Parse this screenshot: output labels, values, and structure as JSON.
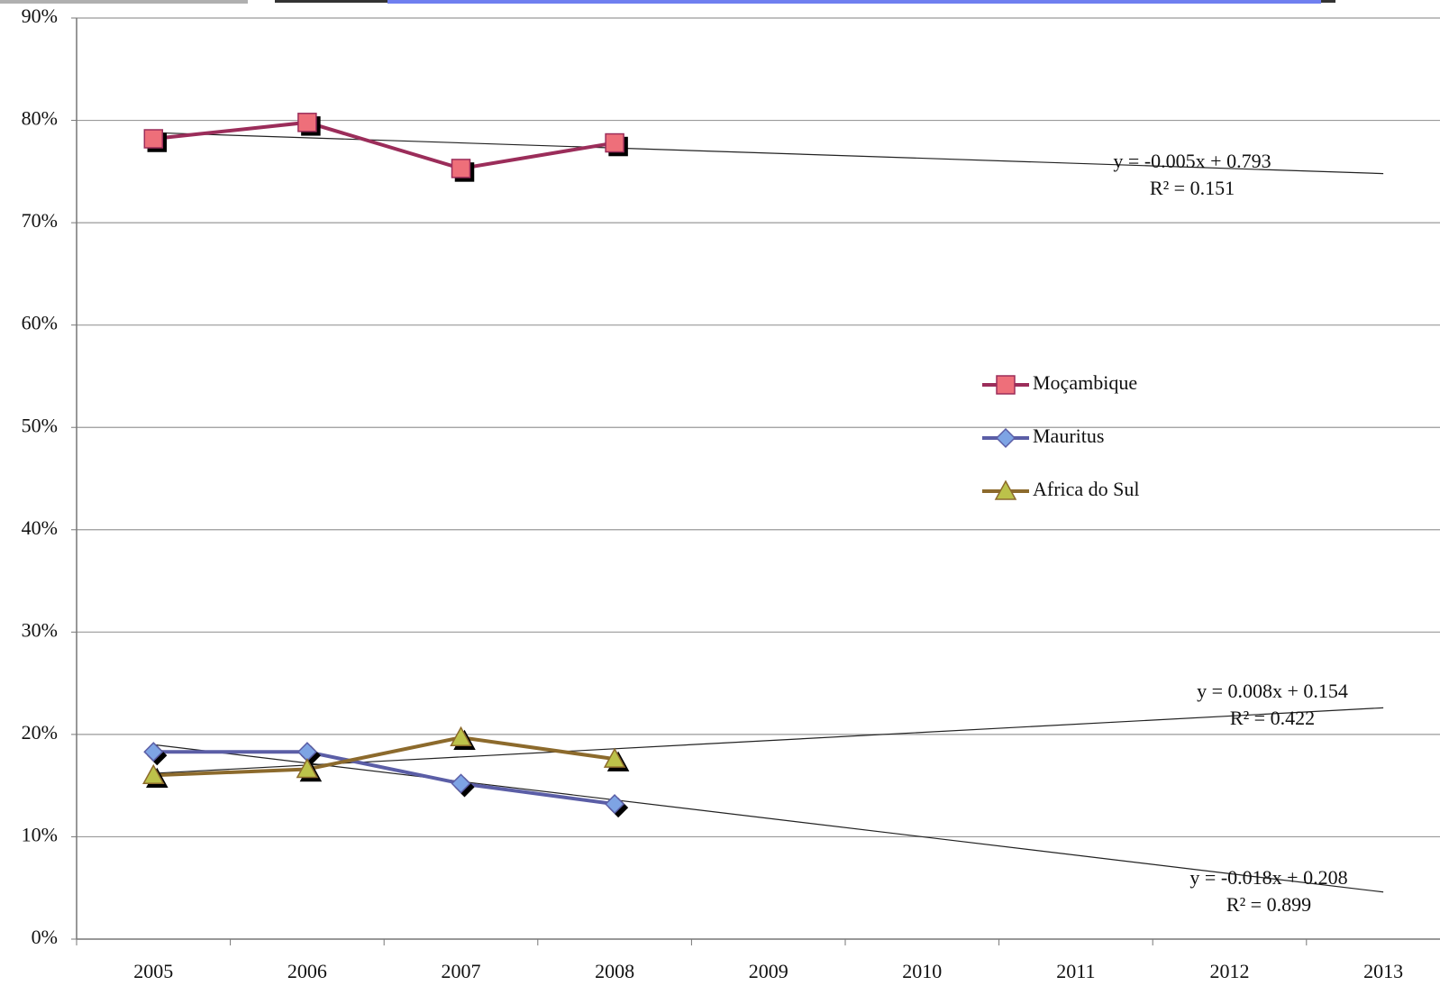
{
  "chart_data": {
    "type": "line",
    "categories": [
      "2005",
      "2006",
      "2007",
      "2008",
      "2009",
      "2010",
      "2011",
      "2012",
      "2013"
    ],
    "series": [
      {
        "name": "Moçambique",
        "color": "#9b2d5a",
        "marker": "square",
        "marker_color": "#ee6f7a",
        "values": [
          78.2,
          79.8,
          75.3,
          77.8,
          null,
          null,
          null,
          null,
          null
        ]
      },
      {
        "name": "Mauritus",
        "color": "#5b5ea6",
        "marker": "diamond",
        "marker_color": "#7ea4e4",
        "values": [
          18.3,
          18.3,
          15.2,
          13.2,
          null,
          null,
          null,
          null,
          null
        ]
      },
      {
        "name": "Africa do Sul",
        "color": "#8c6a2c",
        "marker": "triangle",
        "marker_color": "#bcc24a",
        "values": [
          16.0,
          16.6,
          19.7,
          17.6,
          null,
          null,
          null,
          null,
          null
        ]
      }
    ],
    "trendlines": [
      {
        "equation": "y = -0.005x + 0.793",
        "r2": "R² = 0.151"
      },
      {
        "equation": "y = -0.018x + 0.208",
        "r2": "R² = 0.899"
      },
      {
        "equation": "y = 0.008x + 0.154",
        "r2": "R² = 0.422"
      }
    ],
    "ylim": [
      0,
      90
    ],
    "yticks": [
      {
        "value": 0,
        "label": "0%"
      },
      {
        "value": 10,
        "label": "10%"
      },
      {
        "value": 20,
        "label": "20%"
      },
      {
        "value": 30,
        "label": "30%"
      },
      {
        "value": 40,
        "label": "40%"
      },
      {
        "value": 50,
        "label": "50%"
      },
      {
        "value": 60,
        "label": "60%"
      },
      {
        "value": 70,
        "label": "70%"
      },
      {
        "value": 80,
        "label": "80%"
      },
      {
        "value": 90,
        "label": "90%"
      }
    ],
    "grid": true
  }
}
